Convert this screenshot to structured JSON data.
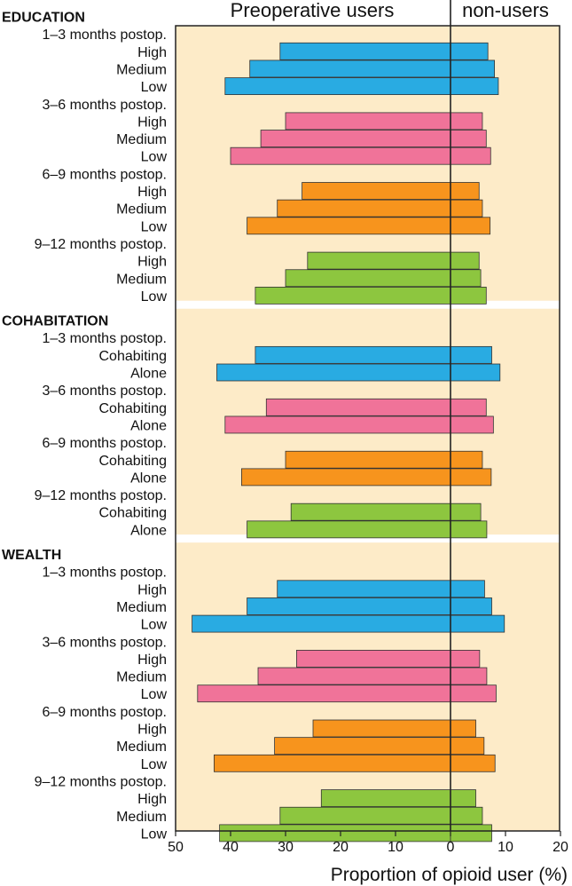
{
  "chart_data": {
    "type": "bar",
    "orientation": "horizontal",
    "stacking": "diverging",
    "header_left": "Preoperative users",
    "header_right": "non-users",
    "xlabel": "Proportion of opioid user (%)",
    "xlim": [
      -50,
      20
    ],
    "x_ticks": [
      -50,
      -40,
      -30,
      -20,
      -10,
      0,
      10,
      20
    ],
    "x_tick_labels": [
      "50",
      "40",
      "30",
      "20",
      "10",
      "0",
      "10",
      "20"
    ],
    "period_colors": [
      "#29abe2",
      "#f07399",
      "#f7941d",
      "#8dc63f"
    ],
    "background_color": "#fdebc8",
    "sections": [
      {
        "title": "EDUCATION",
        "groups": [
          {
            "period": "1–3 months postop.",
            "rows": [
              {
                "label": "High",
                "users": 31,
                "non_users": 6.8
              },
              {
                "label": "Medium",
                "users": 36.5,
                "non_users": 8
              },
              {
                "label": "Low",
                "users": 41,
                "non_users": 8.7
              }
            ]
          },
          {
            "period": "3–6 months postop.",
            "rows": [
              {
                "label": "High",
                "users": 30,
                "non_users": 5.8
              },
              {
                "label": "Medium",
                "users": 34.5,
                "non_users": 6.5
              },
              {
                "label": "Low",
                "users": 40,
                "non_users": 7.3
              }
            ]
          },
          {
            "period": "6–9 months postop.",
            "rows": [
              {
                "label": "High",
                "users": 27,
                "non_users": 5.2
              },
              {
                "label": "Medium",
                "users": 31.5,
                "non_users": 5.8
              },
              {
                "label": "Low",
                "users": 37,
                "non_users": 7.2
              }
            ]
          },
          {
            "period": "9–12 months postop.",
            "rows": [
              {
                "label": "High",
                "users": 26,
                "non_users": 5.2
              },
              {
                "label": "Medium",
                "users": 30,
                "non_users": 5.5
              },
              {
                "label": "Low",
                "users": 35.5,
                "non_users": 6.5
              }
            ]
          }
        ]
      },
      {
        "title": "COHABITATION",
        "groups": [
          {
            "period": "1–3 months postop.",
            "rows": [
              {
                "label": "Cohabiting",
                "users": 35.5,
                "non_users": 7.5
              },
              {
                "label": "Alone",
                "users": 42.5,
                "non_users": 9
              }
            ]
          },
          {
            "period": "3–6 months postop.",
            "rows": [
              {
                "label": "Cohabiting",
                "users": 33.5,
                "non_users": 6.5
              },
              {
                "label": "Alone",
                "users": 41,
                "non_users": 7.8
              }
            ]
          },
          {
            "period": "6–9 months postop.",
            "rows": [
              {
                "label": "Cohabiting",
                "users": 30,
                "non_users": 5.8
              },
              {
                "label": "Alone",
                "users": 38,
                "non_users": 7.4
              }
            ]
          },
          {
            "period": "9–12 months postop.",
            "rows": [
              {
                "label": "Cohabiting",
                "users": 29,
                "non_users": 5.5
              },
              {
                "label": "Alone",
                "users": 37,
                "non_users": 6.6
              }
            ]
          }
        ]
      },
      {
        "title": "WEALTH",
        "groups": [
          {
            "period": "1–3 months postop.",
            "rows": [
              {
                "label": "High",
                "users": 31.5,
                "non_users": 6.2
              },
              {
                "label": "Medium",
                "users": 37,
                "non_users": 7.5
              },
              {
                "label": "Low",
                "users": 47,
                "non_users": 9.8
              }
            ]
          },
          {
            "period": "3–6 months postop.",
            "rows": [
              {
                "label": "High",
                "users": 28,
                "non_users": 5.3
              },
              {
                "label": "Medium",
                "users": 35,
                "non_users": 6.6
              },
              {
                "label": "Low",
                "users": 46,
                "non_users": 8.3
              }
            ]
          },
          {
            "period": "6–9 months postop.",
            "rows": [
              {
                "label": "High",
                "users": 25,
                "non_users": 4.6
              },
              {
                "label": "Medium",
                "users": 32,
                "non_users": 6.1
              },
              {
                "label": "Low",
                "users": 43,
                "non_users": 8.1
              }
            ]
          },
          {
            "period": "9–12 months postop.",
            "rows": [
              {
                "label": "High",
                "users": 23.5,
                "non_users": 4.6
              },
              {
                "label": "Medium",
                "users": 31,
                "non_users": 5.8
              },
              {
                "label": "Low",
                "users": 42,
                "non_users": 7.5
              }
            ]
          }
        ]
      }
    ]
  }
}
